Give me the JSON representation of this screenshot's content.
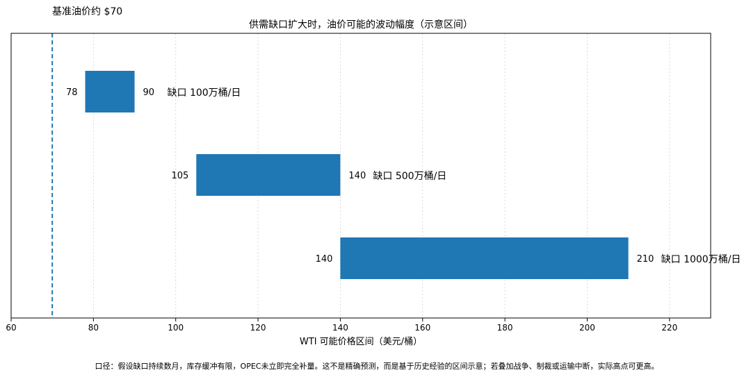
{
  "chart_data": {
    "type": "bar",
    "orientation": "horizontal-range",
    "title": "供需缺口扩大时，油价可能的波动幅度（示意区间）",
    "xlabel": "WTI 可能价格区间（美元/桶）",
    "ylabel": "",
    "xlim": [
      60,
      230
    ],
    "xticks": [
      60,
      80,
      100,
      120,
      140,
      160,
      180,
      200,
      220
    ],
    "grid": true,
    "color": "#1f77b4",
    "baseline": {
      "value": 70,
      "label": "基准油价约 $70",
      "style": "dashed",
      "color": "#1f77b4"
    },
    "series": [
      {
        "category": "缺口 100万桶/日",
        "low": 78,
        "high": 90,
        "low_label": "78",
        "high_label": "90"
      },
      {
        "category": "缺口 500万桶/日",
        "low": 105,
        "high": 140,
        "low_label": "105",
        "high_label": "140"
      },
      {
        "category": "缺口 1000万桶/日",
        "low": 140,
        "high": 210,
        "low_label": "140",
        "high_label": "210"
      }
    ],
    "footnote": "口径：假设缺口持续数月，库存缓冲有限，OPEC未立即完全补量。这不是精确预测，而是基于历史经验的区间示意；若叠加战争、制裁或运输中断，实际高点可更高。"
  }
}
